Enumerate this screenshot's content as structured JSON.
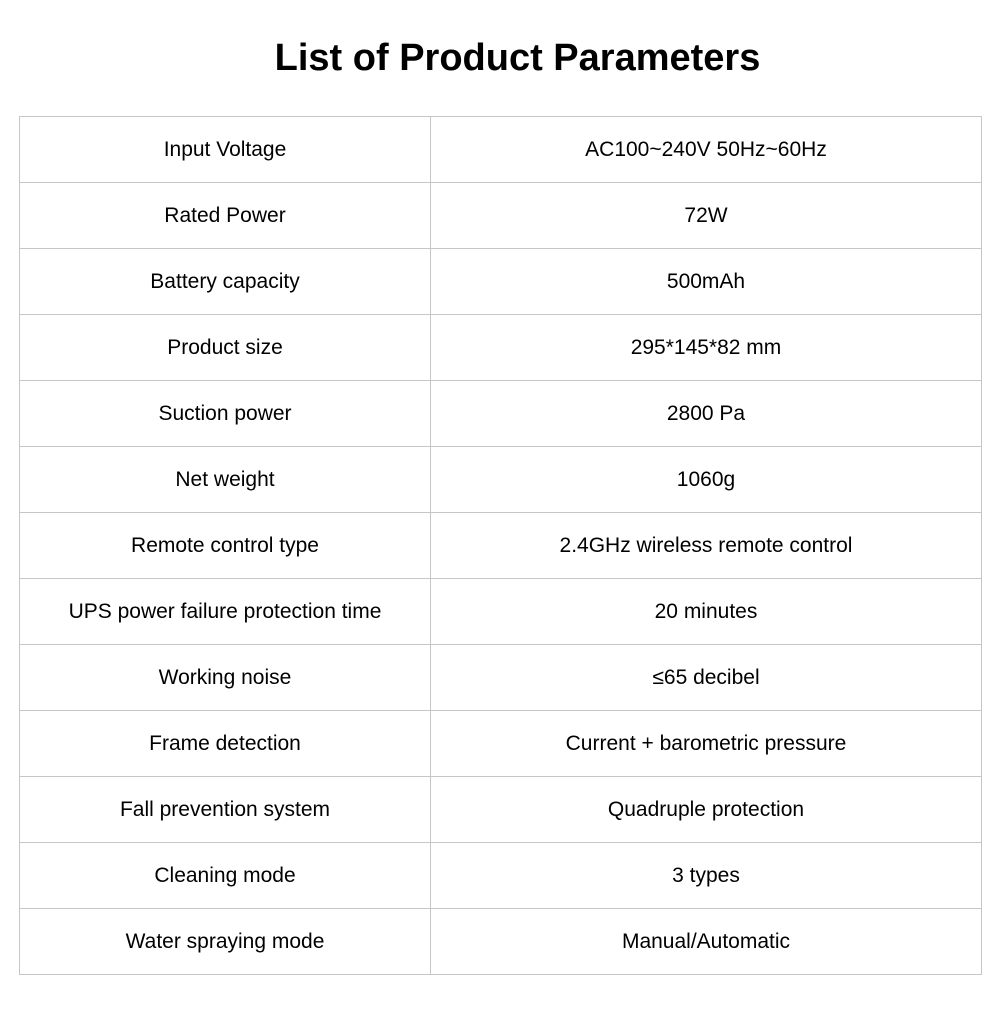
{
  "title": "List of Product Parameters",
  "rows": [
    {
      "label": "Input Voltage",
      "value": "AC100~240V 50Hz~60Hz"
    },
    {
      "label": "Rated Power",
      "value": "72W"
    },
    {
      "label": "Battery capacity",
      "value": "500mAh"
    },
    {
      "label": "Product size",
      "value": "295*145*82 mm"
    },
    {
      "label": "Suction power",
      "value": "2800 Pa"
    },
    {
      "label": "Net weight",
      "value": "1060g"
    },
    {
      "label": "Remote control type",
      "value": "2.4GHz wireless remote control"
    },
    {
      "label": "UPS power failure protection time",
      "value": "20 minutes"
    },
    {
      "label": "Working noise",
      "value": "≤65 decibel"
    },
    {
      "label": "Frame detection",
      "value": "Current + barometric pressure"
    },
    {
      "label": "Fall prevention system",
      "value": "Quadruple protection"
    },
    {
      "label": "Cleaning mode",
      "value": "3 types"
    },
    {
      "label": "Water spraying mode",
      "value": "Manual/Automatic"
    }
  ]
}
